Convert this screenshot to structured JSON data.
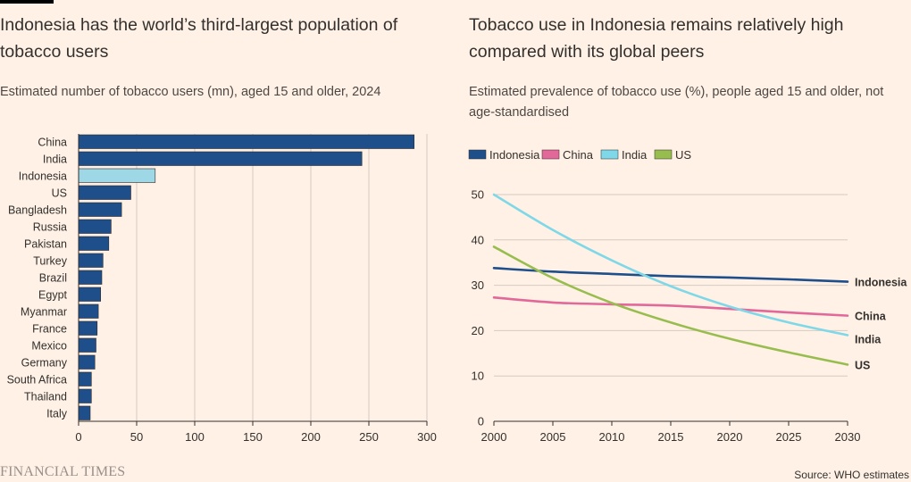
{
  "header": {
    "accent": "#000000"
  },
  "left": {
    "title": "Indonesia has the world’s third-largest population of tobacco users",
    "subtitle": "Estimated number of tobacco users (mn), aged 15 and older, 2024"
  },
  "right": {
    "title": "Tobacco use in Indonesia remains relatively high compared with its global peers",
    "subtitle": "Estimated prevalence of tobacco use (%), people aged 15 and older, not age-standardised"
  },
  "footer": {
    "logo": "FINANCIAL TIMES",
    "source": "Source: WHO estimates"
  },
  "colors": {
    "background": "#fff1e5",
    "bar_default": "#1e4f8b",
    "bar_highlight": "#9ed7e6",
    "grid": "#d6cbc2",
    "axis": "#33302e"
  },
  "chart_data": [
    {
      "type": "bar",
      "orientation": "horizontal",
      "title": "Indonesia has the world’s third-largest population of tobacco users",
      "subtitle": "Estimated number of tobacco users (mn), aged 15 and older, 2024",
      "categories": [
        "China",
        "India",
        "Indonesia",
        "US",
        "Bangladesh",
        "Russia",
        "Pakistan",
        "Turkey",
        "Brazil",
        "Egypt",
        "Myanmar",
        "France",
        "Mexico",
        "Germany",
        "South Africa",
        "Thailand",
        "Italy"
      ],
      "values": [
        289,
        244,
        66,
        45,
        37,
        28,
        26,
        21,
        20,
        19,
        17,
        16,
        15,
        14,
        11,
        11,
        10
      ],
      "highlight": "Indonesia",
      "xlim": [
        0,
        300
      ],
      "xticks": [
        0,
        50,
        100,
        150,
        200,
        250,
        300
      ],
      "grid": true
    },
    {
      "type": "line",
      "title": "Tobacco use in Indonesia remains relatively high compared with its global peers",
      "subtitle": "Estimated prevalence of tobacco use (%), people aged 15 and older, not age-standardised",
      "x": [
        2000,
        2005,
        2010,
        2015,
        2020,
        2025,
        2030
      ],
      "series": [
        {
          "name": "Indonesia",
          "color": "#1e4f8b",
          "values": [
            33.8,
            33.0,
            32.5,
            32.0,
            31.7,
            31.3,
            30.8
          ]
        },
        {
          "name": "China",
          "color": "#e3689a",
          "values": [
            27.3,
            26.2,
            25.8,
            25.5,
            24.8,
            24.0,
            23.3
          ]
        },
        {
          "name": "India",
          "color": "#7fd8e8",
          "values": [
            50.0,
            42.2,
            35.5,
            29.8,
            25.3,
            21.8,
            19.0
          ]
        },
        {
          "name": "US",
          "color": "#98bd4f",
          "values": [
            38.5,
            31.6,
            26.1,
            21.8,
            18.2,
            15.2,
            12.5
          ]
        }
      ],
      "legend_position": "top-left",
      "ylim": [
        0,
        50
      ],
      "yticks": [
        0,
        10,
        20,
        30,
        40,
        50
      ],
      "xticks": [
        2000,
        2005,
        2010,
        2015,
        2020,
        2025,
        2030
      ],
      "grid": true
    }
  ]
}
